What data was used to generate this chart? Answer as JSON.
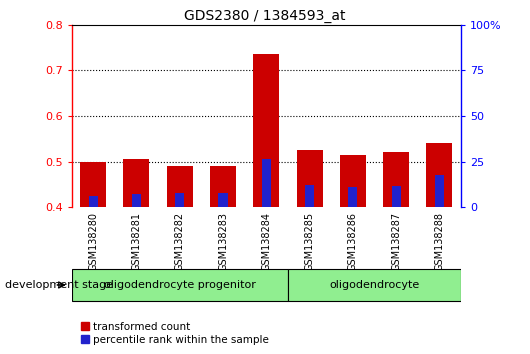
{
  "title": "GDS2380 / 1384593_at",
  "samples": [
    "GSM138280",
    "GSM138281",
    "GSM138282",
    "GSM138283",
    "GSM138284",
    "GSM138285",
    "GSM138286",
    "GSM138287",
    "GSM138288"
  ],
  "transformed_count": [
    0.5,
    0.505,
    0.49,
    0.49,
    0.735,
    0.525,
    0.515,
    0.52,
    0.54
  ],
  "percentile_rank": [
    0.425,
    0.428,
    0.43,
    0.43,
    0.505,
    0.448,
    0.443,
    0.447,
    0.47
  ],
  "bar_bottom": 0.4,
  "ylim_left": [
    0.4,
    0.8
  ],
  "ylim_right": [
    0.0,
    100.0
  ],
  "yticks_left": [
    0.4,
    0.5,
    0.6,
    0.7,
    0.8
  ],
  "yticks_right": [
    0,
    25,
    50,
    75,
    100
  ],
  "ytick_labels_right": [
    "0",
    "25",
    "50",
    "75",
    "100%"
  ],
  "groups": [
    {
      "label": "oligodendrocyte progenitor",
      "start": 0,
      "end": 5
    },
    {
      "label": "oligodendrocyte",
      "start": 5,
      "end": 9
    }
  ],
  "group_divider": 5,
  "bar_color_red": "#CC0000",
  "bar_color_blue": "#2222CC",
  "bg_color": "#C8C8C8",
  "green_color": "#90EE90",
  "legend_red": "transformed count",
  "legend_blue": "percentile rank within the sample",
  "dev_stage_label": "development stage"
}
